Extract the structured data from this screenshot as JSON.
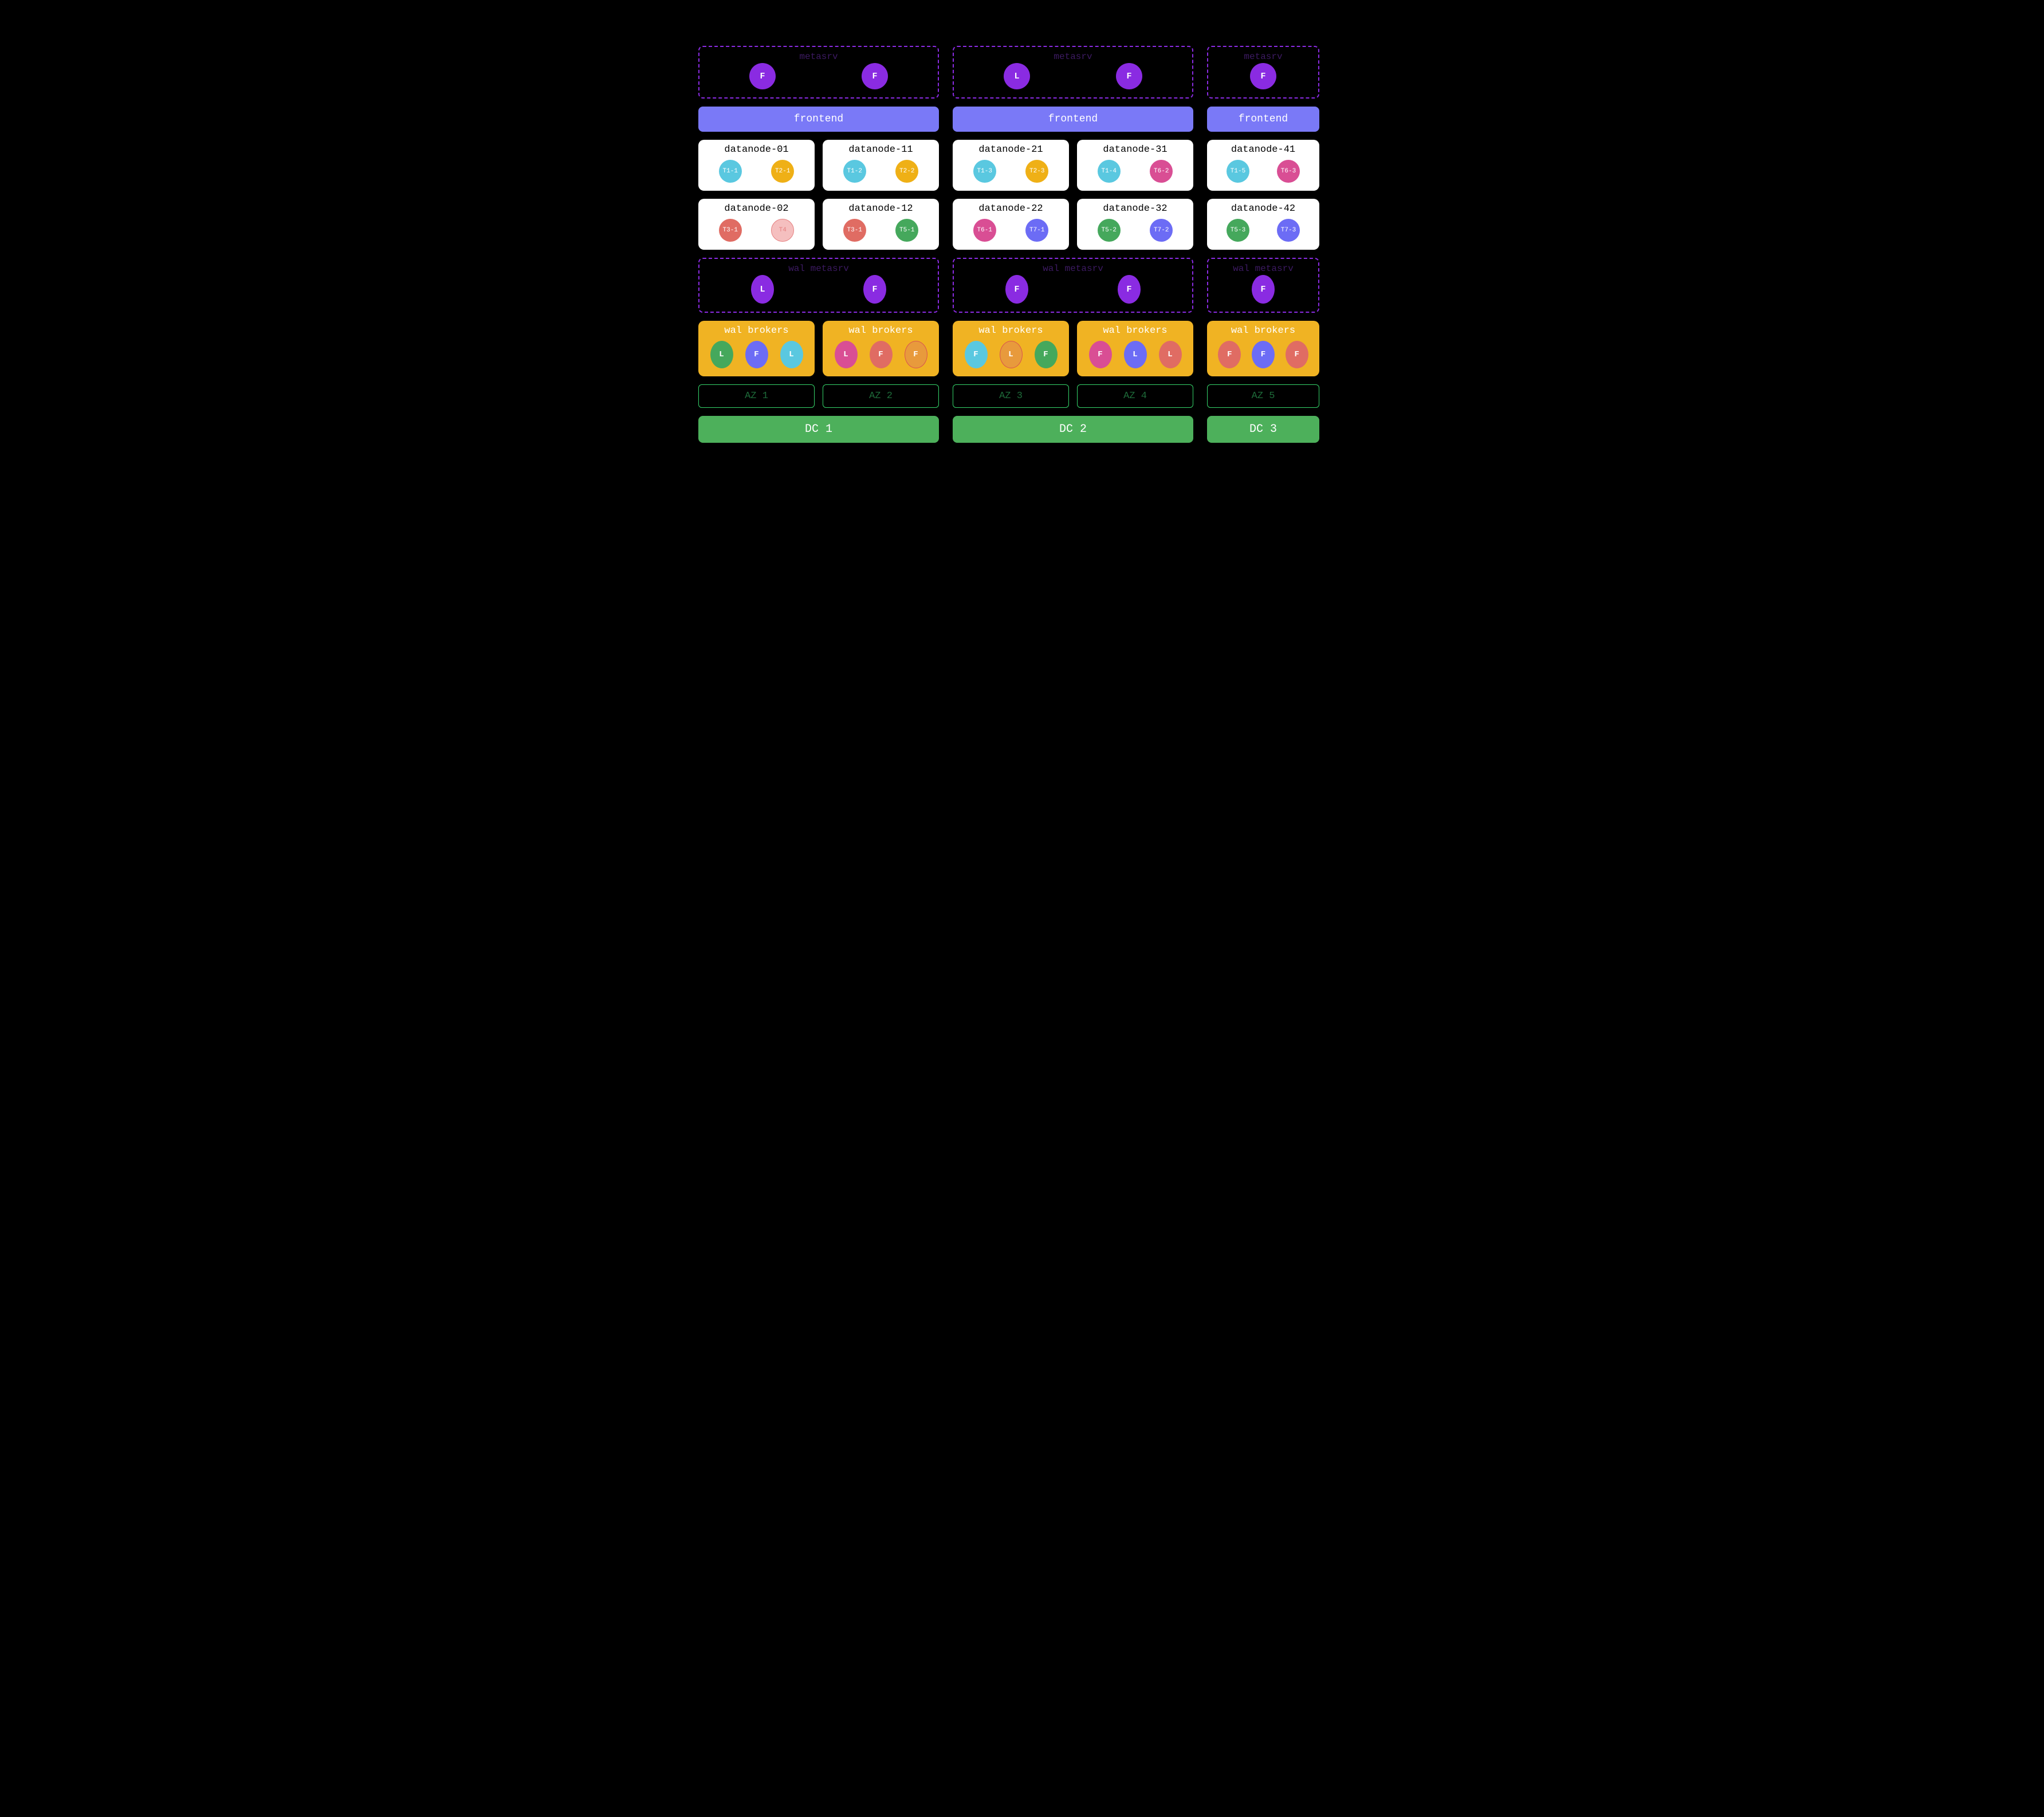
{
  "colors": {
    "bg": "#000000",
    "purple": "#8a2be2",
    "purple_dark_text": "#3d1a63",
    "frontend_bg": "#7a79f7",
    "frontend_text": "#ffffff",
    "datanode_bg": "#ffffff",
    "wal_bg": "#f0b323",
    "wal_text": "#ffffff",
    "az_border": "#35d46a",
    "az_text": "#1e6b3a",
    "dc_bg": "#4db05b",
    "dc_text": "#ffffff",
    "cyan": "#5ac8e0",
    "yellow": "#efb016",
    "red": "#e06c63",
    "pink_light": "#f5bfbf",
    "green": "#45a85c",
    "pink": "#d94e94",
    "blue": "#6c6cf5",
    "orange": "#e89a3c",
    "orange_border": "#d9534f"
  },
  "dcs": [
    {
      "name": "DC 1",
      "wide": true,
      "metasrv": {
        "title": "metasrv",
        "nodes": [
          "F",
          "F"
        ]
      },
      "frontend": "frontend",
      "datanodes": [
        [
          {
            "title": "datanode-01",
            "tablets": [
              {
                "label": "T1-1",
                "color": "cyan"
              },
              {
                "label": "T2-1",
                "color": "yellow"
              }
            ]
          },
          {
            "title": "datanode-11",
            "tablets": [
              {
                "label": "T1-2",
                "color": "cyan"
              },
              {
                "label": "T2-2",
                "color": "yellow"
              }
            ]
          }
        ],
        [
          {
            "title": "datanode-02",
            "tablets": [
              {
                "label": "T3-1",
                "color": "red"
              },
              {
                "label": "T4",
                "color": "pink_light",
                "text": "#e57f7f",
                "border": "#e57f7f"
              }
            ]
          },
          {
            "title": "datanode-12",
            "tablets": [
              {
                "label": "T3-1",
                "color": "red"
              },
              {
                "label": "T5-1",
                "color": "green"
              }
            ]
          }
        ]
      ],
      "wal_metasrv": {
        "title": "wal metasrv",
        "nodes": [
          "L",
          "F"
        ]
      },
      "wal_brokers": [
        {
          "title": "wal brokers",
          "ovals": [
            {
              "label": "L",
              "color": "green"
            },
            {
              "label": "F",
              "color": "blue"
            },
            {
              "label": "L",
              "color": "cyan"
            }
          ]
        },
        {
          "title": "wal brokers",
          "ovals": [
            {
              "label": "L",
              "color": "pink"
            },
            {
              "label": "F",
              "color": "red"
            },
            {
              "label": "F",
              "color": "orange",
              "border": "orange_border"
            }
          ]
        }
      ],
      "azs": [
        "AZ 1",
        "AZ 2"
      ]
    },
    {
      "name": "DC 2",
      "wide": true,
      "metasrv": {
        "title": "metasrv",
        "nodes": [
          "L",
          "F"
        ]
      },
      "frontend": "frontend",
      "datanodes": [
        [
          {
            "title": "datanode-21",
            "tablets": [
              {
                "label": "T1-3",
                "color": "cyan"
              },
              {
                "label": "T2-3",
                "color": "yellow"
              }
            ]
          },
          {
            "title": "datanode-31",
            "tablets": [
              {
                "label": "T1-4",
                "color": "cyan"
              },
              {
                "label": "T6-2",
                "color": "pink"
              }
            ]
          }
        ],
        [
          {
            "title": "datanode-22",
            "tablets": [
              {
                "label": "T6-1",
                "color": "pink"
              },
              {
                "label": "T7-1",
                "color": "blue"
              }
            ]
          },
          {
            "title": "datanode-32",
            "tablets": [
              {
                "label": "T5-2",
                "color": "green"
              },
              {
                "label": "T7-2",
                "color": "blue"
              }
            ]
          }
        ]
      ],
      "wal_metasrv": {
        "title": "wal metasrv",
        "nodes": [
          "F",
          "F"
        ]
      },
      "wal_brokers": [
        {
          "title": "wal brokers",
          "ovals": [
            {
              "label": "F",
              "color": "cyan"
            },
            {
              "label": "L",
              "color": "orange",
              "border": "orange_border"
            },
            {
              "label": "F",
              "color": "green"
            }
          ]
        },
        {
          "title": "wal brokers",
          "ovals": [
            {
              "label": "F",
              "color": "pink"
            },
            {
              "label": "L",
              "color": "blue"
            },
            {
              "label": "L",
              "color": "red"
            }
          ]
        }
      ],
      "azs": [
        "AZ 3",
        "AZ 4"
      ]
    },
    {
      "name": "DC 3",
      "wide": false,
      "metasrv": {
        "title": "metasrv",
        "nodes": [
          "F"
        ]
      },
      "frontend": "frontend",
      "datanodes": [
        [
          {
            "title": "datanode-41",
            "tablets": [
              {
                "label": "T1-5",
                "color": "cyan"
              },
              {
                "label": "T6-3",
                "color": "pink"
              }
            ]
          }
        ],
        [
          {
            "title": "datanode-42",
            "tablets": [
              {
                "label": "T5-3",
                "color": "green"
              },
              {
                "label": "T7-3",
                "color": "blue"
              }
            ]
          }
        ]
      ],
      "wal_metasrv": {
        "title": "wal metasrv",
        "nodes": [
          "F"
        ]
      },
      "wal_brokers": [
        {
          "title": "wal brokers",
          "ovals": [
            {
              "label": "F",
              "color": "red"
            },
            {
              "label": "F",
              "color": "blue"
            },
            {
              "label": "F",
              "color": "red"
            }
          ]
        }
      ],
      "azs": [
        "AZ 5"
      ]
    }
  ]
}
